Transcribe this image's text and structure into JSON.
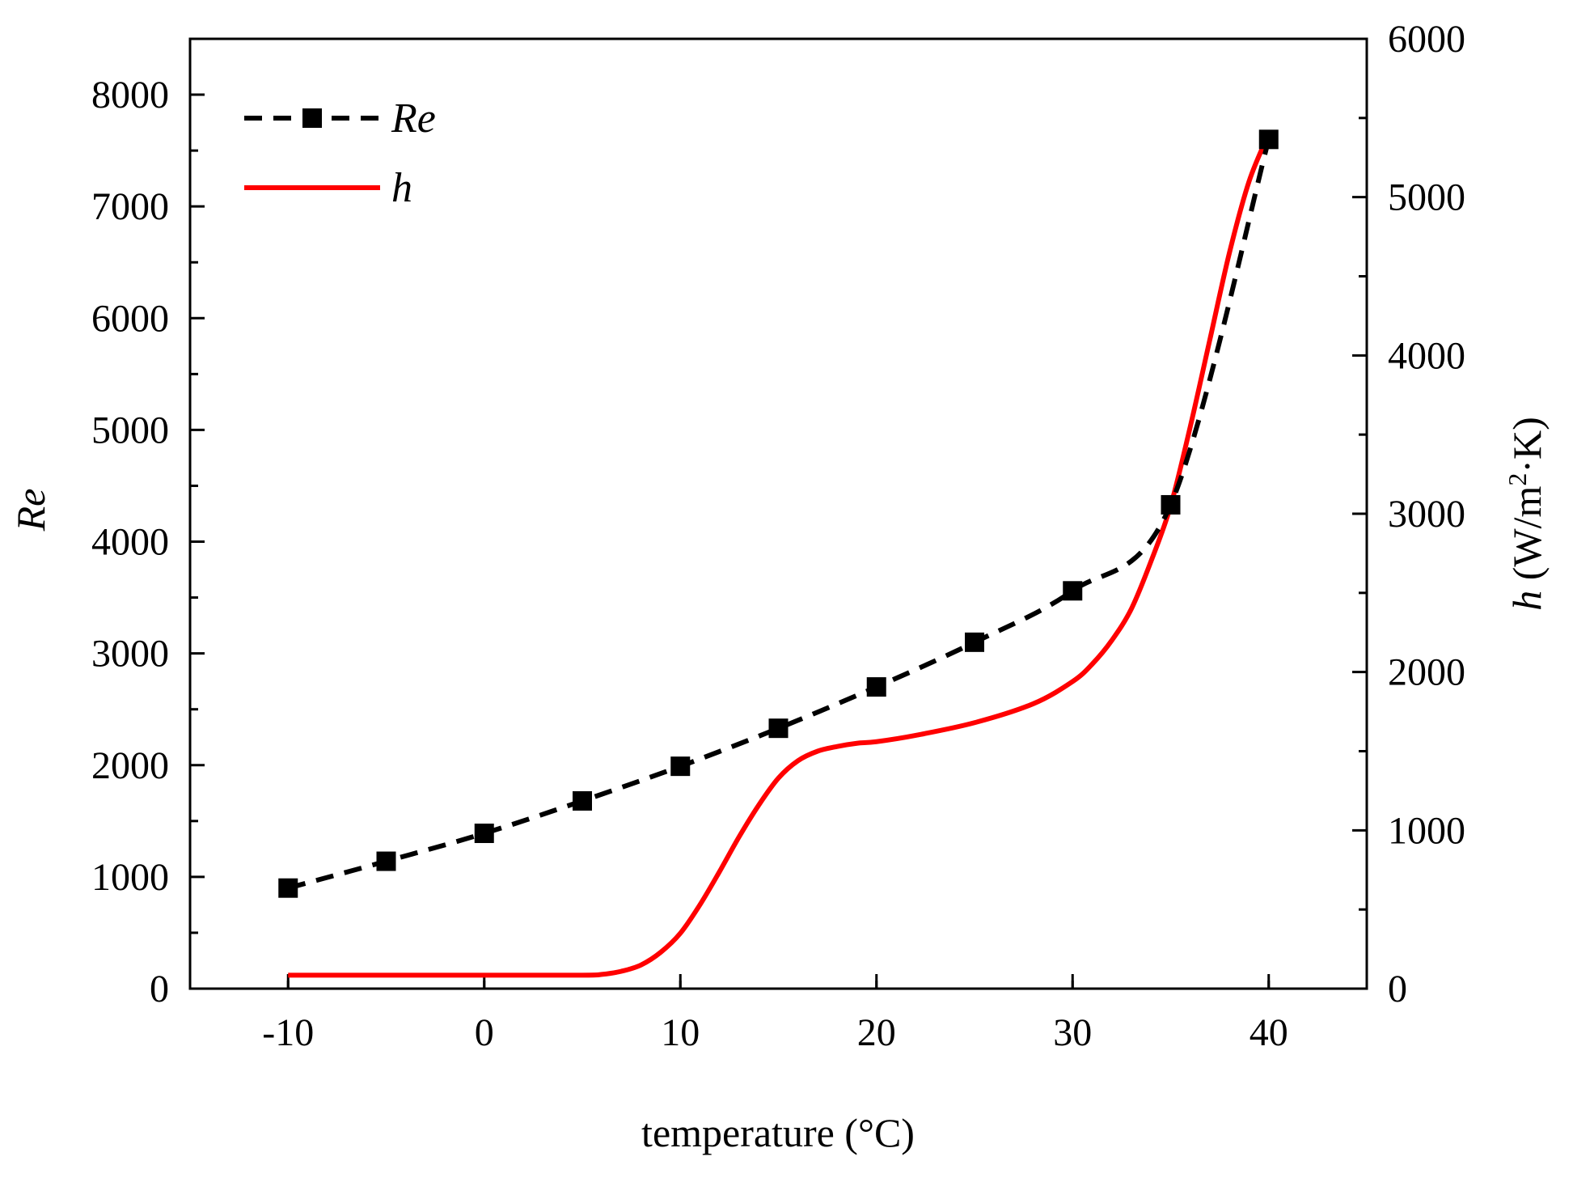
{
  "chart_data": {
    "type": "line",
    "title": "",
    "xlabel": "temperature (°C)",
    "ylabel_left": "Re",
    "ylabel_right": {
      "symbol": "h",
      "unit_prefix": " (W/m",
      "superscript": "2",
      "unit_suffix": "·K)"
    },
    "xlim": [
      -15,
      45
    ],
    "ylim_left": [
      0,
      8500
    ],
    "ylim_right": [
      0,
      6000
    ],
    "xticks": [
      -10,
      0,
      10,
      20,
      30,
      40
    ],
    "xtick_labels": [
      "-10",
      "0",
      "10",
      "20",
      "30",
      "40"
    ],
    "yticks_left": [
      0,
      1000,
      2000,
      3000,
      4000,
      5000,
      6000,
      7000,
      8000
    ],
    "ytick_labels_left": [
      "0",
      "1000",
      "2000",
      "3000",
      "4000",
      "5000",
      "6000",
      "7000",
      "8000"
    ],
    "yticks_right": [
      0,
      1000,
      2000,
      3000,
      4000,
      5000,
      6000
    ],
    "ytick_labels_right": [
      "0",
      "1000",
      "2000",
      "3000",
      "4000",
      "5000",
      "6000"
    ],
    "grid": false,
    "legend_position": "top-left",
    "series": [
      {
        "name": "Re",
        "axis": "left",
        "style": "dashed-square-markers",
        "color": "#000000",
        "x": [
          -10,
          -5,
          0,
          5,
          10,
          15,
          20,
          25,
          30,
          35,
          40
        ],
        "values": [
          900,
          1140,
          1390,
          1680,
          1990,
          2330,
          2700,
          3100,
          3560,
          4330,
          7600
        ]
      },
      {
        "name": "h",
        "axis": "right",
        "style": "solid",
        "color": "#ff0000",
        "x": [
          -10,
          -5,
          0,
          5,
          6,
          7,
          8,
          9,
          10,
          11,
          12,
          13,
          14,
          15,
          16,
          17,
          18,
          19,
          20,
          22,
          25,
          28,
          30,
          31,
          32,
          33,
          34,
          35,
          36,
          37,
          38,
          39,
          40
        ],
        "values": [
          85,
          85,
          85,
          85,
          90,
          110,
          150,
          230,
          350,
          530,
          740,
          960,
          1160,
          1330,
          1440,
          1500,
          1530,
          1550,
          1560,
          1600,
          1680,
          1800,
          1940,
          2050,
          2200,
          2400,
          2700,
          3050,
          3550,
          4100,
          4650,
          5100,
          5400
        ]
      }
    ]
  }
}
